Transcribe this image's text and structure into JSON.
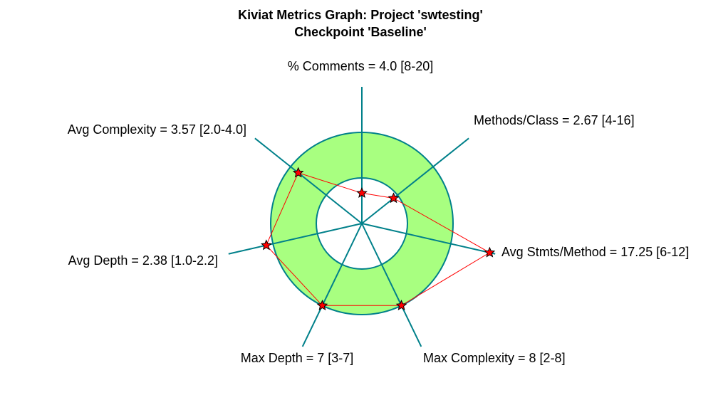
{
  "chart_data": {
    "type": "radar",
    "title": "Kiviat Metrics Graph: Project 'swtesting'",
    "subtitle": "Checkpoint 'Baseline'",
    "colors": {
      "axis": "#00808a",
      "band_fill": "#a8ff80",
      "band_stroke": "#00808a",
      "series_line": "#ff0000",
      "marker_fill": "#ff0000",
      "marker_stroke": "#000000"
    },
    "axes": [
      {
        "label": "% Comments = 4.0 [8-20]",
        "value": 4.0,
        "min": 8,
        "max": 20
      },
      {
        "label": "Methods/Class = 2.67 [4-16]",
        "value": 2.67,
        "min": 4,
        "max": 16
      },
      {
        "label": "Avg Stmts/Method = 17.25 [6-12]",
        "value": 17.25,
        "min": 6,
        "max": 12
      },
      {
        "label": "Max Complexity = 8 [2-8]",
        "value": 8,
        "min": 2,
        "max": 8
      },
      {
        "label": "Max Depth = 7 [3-7]",
        "value": 7,
        "min": 3,
        "max": 7
      },
      {
        "label": "Avg Depth = 2.38 [1.0-2.2]",
        "value": 2.38,
        "min": 1.0,
        "max": 2.2
      },
      {
        "label": "Avg Complexity = 3.57 [2.0-4.0]",
        "value": 3.57,
        "min": 2.0,
        "max": 4.0
      }
    ]
  }
}
